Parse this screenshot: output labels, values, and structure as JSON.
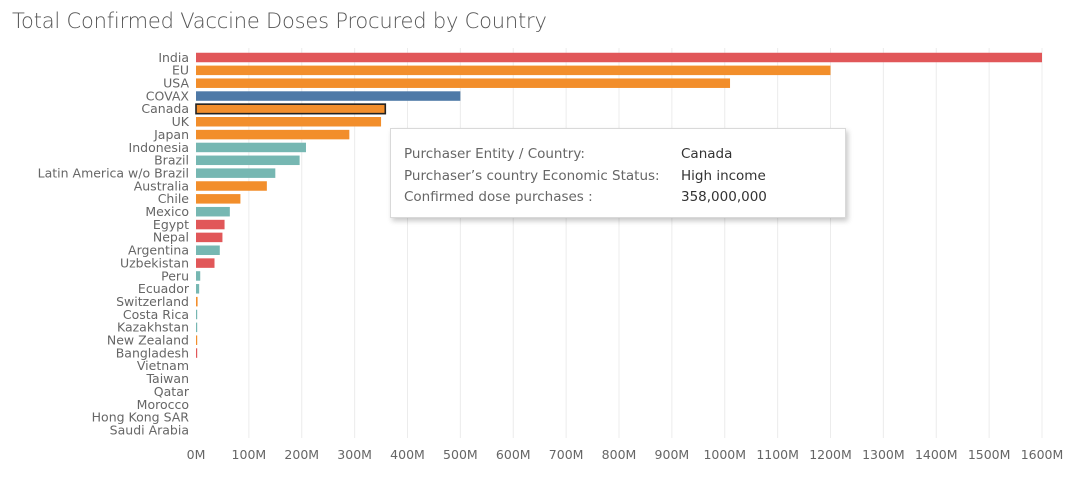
{
  "chart_data": {
    "type": "bar",
    "orientation": "horizontal",
    "title": "Total Confirmed Vaccine Doses Procured by Country",
    "xlabel": "",
    "ylabel": "",
    "xlim": [
      0,
      1600000000
    ],
    "grid": "vertical",
    "categories": [
      "India",
      "EU",
      "USA",
      "COVAX",
      "Canada",
      "UK",
      "Japan",
      "Indonesia",
      "Brazil",
      "Latin America w/o Brazil",
      "Australia",
      "Chile",
      "Mexico",
      "Egypt",
      "Nepal",
      "Argentina",
      "Uzbekistan",
      "Peru",
      "Ecuador",
      "Switzerland",
      "Costa Rica",
      "Kazakhstan",
      "New Zealand",
      "Bangladesh",
      "Vietnam",
      "Taiwan",
      "Qatar",
      "Morocco",
      "Hong Kong SAR",
      "Saudi Arabia"
    ],
    "values": [
      1600000000,
      1200000000,
      1010000000,
      500000000,
      358000000,
      350000000,
      290000000,
      208000000,
      196000000,
      150000000,
      134000000,
      84000000,
      64000000,
      54000000,
      50000000,
      45000000,
      35000000,
      8000000,
      6000000,
      3000000,
      2000000,
      1500000,
      1500000,
      1500000,
      0,
      0,
      0,
      0,
      0,
      0
    ],
    "colors": [
      "#e15759",
      "#f28e2b",
      "#f28e2b",
      "#4e79a7",
      "#f28e2b",
      "#f28e2b",
      "#f28e2b",
      "#76b7b2",
      "#76b7b2",
      "#76b7b2",
      "#f28e2b",
      "#f28e2b",
      "#76b7b2",
      "#e15759",
      "#e15759",
      "#76b7b2",
      "#e15759",
      "#76b7b2",
      "#76b7b2",
      "#f28e2b",
      "#76b7b2",
      "#76b7b2",
      "#f28e2b",
      "#e15759",
      "#e15759",
      "#f28e2b",
      "#f28e2b",
      "#e15759",
      "#f28e2b",
      "#f28e2b"
    ],
    "highlighted": "Canada",
    "xticks": [
      0,
      100000000,
      200000000,
      300000000,
      400000000,
      500000000,
      600000000,
      700000000,
      800000000,
      900000000,
      1000000000,
      1100000000,
      1200000000,
      1300000000,
      1400000000,
      1500000000,
      1600000000
    ],
    "xtick_labels": [
      "0M",
      "100M",
      "200M",
      "300M",
      "400M",
      "500M",
      "600M",
      "700M",
      "800M",
      "900M",
      "1000M",
      "1100M",
      "1200M",
      "1300M",
      "1400M",
      "1500M",
      "1600M"
    ]
  },
  "tooltip": {
    "rows": [
      {
        "label": "Purchaser Entity / Country:",
        "value": "Canada"
      },
      {
        "label": "Purchaser’s country Economic  Status:",
        "value": "High income"
      },
      {
        "label": "Confirmed dose purchases :",
        "value": "358,000,000"
      }
    ]
  }
}
